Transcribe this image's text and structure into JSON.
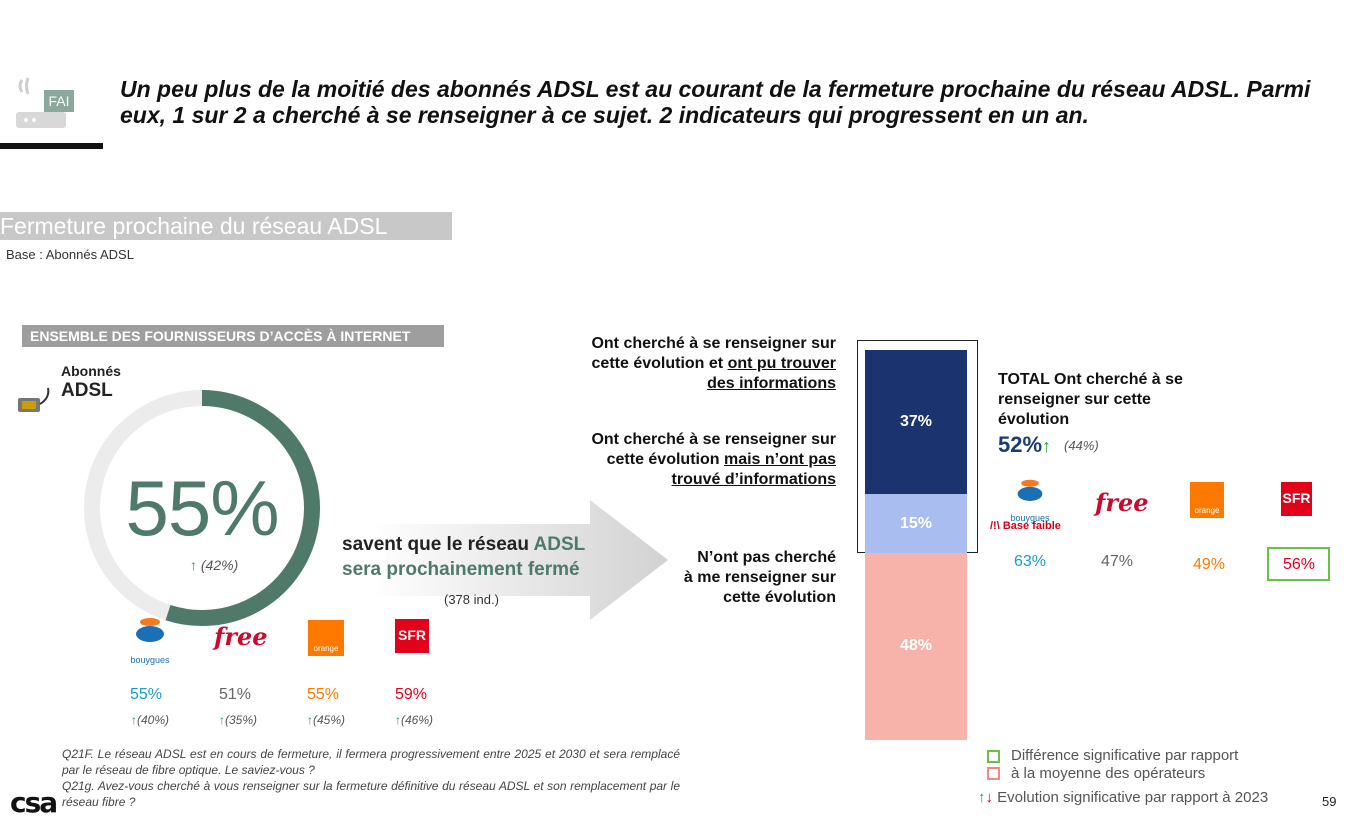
{
  "header": {
    "fai_label": "FAI",
    "headline": "Un peu plus de la moitié des abonnés ADSL est au courant de la fermeture prochaine du réseau ADSL. Parmi eux, 1 sur 2 a cherché à se renseigner à ce sujet. 2 indicateurs qui progressent en un an.",
    "section_title": "Fermeture prochaine du réseau ADSL",
    "base": "Base : Abonnés ADSL"
  },
  "left_panel": {
    "band_title": "ENSEMBLE DES FOURNISSEURS D’ACCÈS À INTERNET",
    "abonnes": "Abonnés",
    "adsl": "ADSL",
    "main_pct": "55%",
    "main_prev": "(42%)",
    "main_value": 55,
    "savent_part1": "savent que le réseau ",
    "savent_part2": "ADSL",
    "savent_line2": "sera prochainement fermé",
    "ind": "(378 ind.)",
    "operators": [
      {
        "name": "bouygues",
        "value": "55%",
        "prev": "(40%)",
        "color": "#1a9bc9"
      },
      {
        "name": "free",
        "value": "51%",
        "prev": "(35%)",
        "color": "#666666"
      },
      {
        "name": "orange",
        "value": "55%",
        "prev": "(45%)",
        "color": "#ff7900"
      },
      {
        "name": "SFR",
        "value": "59%",
        "prev": "(46%)",
        "color": "#e2001a"
      }
    ]
  },
  "middle_labels": {
    "l1_a": "Ont cherché à se renseigner sur",
    "l1_b": "cette évolution et ",
    "l1_c": "ont pu trouver",
    "l1_d": "des informations",
    "l2_a": "Ont cherché à se renseigner sur",
    "l2_b": "cette évolution ",
    "l2_c": "mais n’ont pas",
    "l2_d": "trouvé d’informations",
    "l3_a": "N’ont pas cherché",
    "l3_b": "à me renseigner sur",
    "l3_c": "cette évolution"
  },
  "chart_data": {
    "type": "bar",
    "stacked": true,
    "categories": [
      "Abonnés ADSL"
    ],
    "series": [
      {
        "name": "Ont cherché à se renseigner sur cette évolution et ont pu trouver des informations",
        "values": [
          37
        ],
        "color": "#1b3470",
        "label": "37%"
      },
      {
        "name": "Ont cherché à se renseigner sur cette évolution mais n’ont pas trouvé d’informations",
        "values": [
          15
        ],
        "color": "#a9bdf0",
        "label": "15%"
      },
      {
        "name": "N’ont pas cherché à me renseigner sur cette évolution",
        "values": [
          48
        ],
        "color": "#f7b3aa",
        "label": "48%"
      }
    ]
  },
  "right_panel": {
    "total_label": "TOTAL Ont cherché à se renseigner sur cette évolution",
    "total_value": "52%",
    "total_prev": "(44%)",
    "base_faible": "/!\\ Base faible",
    "operators": [
      {
        "name": "bouygues",
        "value": "63%",
        "color": "#1a9bc9"
      },
      {
        "name": "free",
        "value": "47%",
        "color": "#666666"
      },
      {
        "name": "orange",
        "value": "49%",
        "color": "#ff7900"
      },
      {
        "name": "SFR",
        "value": "56%",
        "color": "#e2001a"
      }
    ]
  },
  "footnote": {
    "q1": "Q21F. Le réseau ADSL est en cours de fermeture, il fermera progressivement entre 2025 et 2030 et sera remplacé par le réseau de fibre optique. Le saviez-vous ?",
    "q2": "Q21g. Avez-vous cherché à vous renseigner sur la fermeture définitive du réseau ADSL et son remplacement par le réseau fibre ?"
  },
  "legend": {
    "line1": "Différence significative par rapport",
    "line2": "à la moyenne des opérateurs",
    "line3": "Evolution significative par rapport à 2023",
    "green": "#6cc04a",
    "red": "#f08a80"
  },
  "logos": {
    "bouygues": "bouygues",
    "free": "free",
    "orange": "orange",
    "sfr": "SFR",
    "csa": "csa"
  },
  "page_number": "59"
}
